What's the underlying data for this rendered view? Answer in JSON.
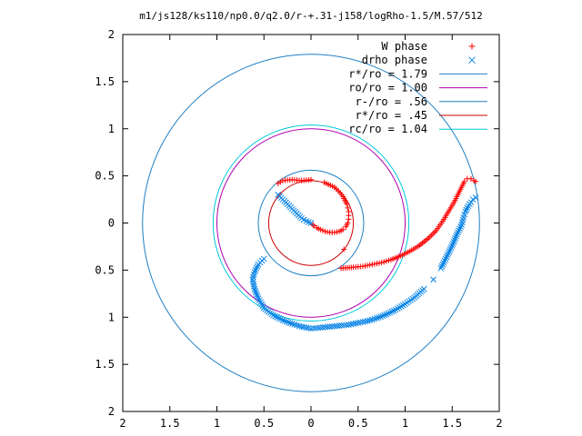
{
  "chart_data": {
    "type": "scatter",
    "title": "m1/js128/ks110/np0.0/q2.0/r-+.31-j158/logRho-1.5/M.57/512",
    "xlabel": "",
    "ylabel": "",
    "xlim": [
      -2,
      2
    ],
    "ylim": [
      -2,
      2
    ],
    "x_ticks": [
      -2,
      -1.5,
      -1,
      -0.5,
      0,
      0.5,
      1,
      1.5,
      2
    ],
    "y_ticks": [
      -2,
      -1.5,
      -1,
      -0.5,
      0,
      0.5,
      1,
      1.5,
      2
    ],
    "x_tick_labels": [
      "2",
      "1.5",
      "1",
      "0.5",
      "0",
      "0.5",
      "1",
      "1.5",
      "2"
    ],
    "y_tick_labels": [
      "2",
      "1.5",
      "1",
      "0.5",
      "0",
      "0.5",
      "1",
      "1.5",
      "2"
    ],
    "grid": false,
    "legend_position": "top-right",
    "series": [
      {
        "name": "W phase",
        "kind": "points",
        "marker": "plus",
        "color": "#ff0000",
        "points": [
          [
            -0.35,
            0.42
          ],
          [
            -0.3,
            0.45
          ],
          [
            -0.2,
            0.46
          ],
          [
            -0.1,
            0.45
          ],
          [
            0,
            0.46
          ],
          [
            0.14,
            0.43
          ],
          [
            0.25,
            0.38
          ],
          [
            0.31,
            0.32
          ],
          [
            0.34,
            0.28
          ],
          [
            0.36,
            0.24
          ],
          [
            0.38,
            0.2
          ],
          [
            0.39,
            0.16
          ],
          [
            0.4,
            0.12
          ],
          [
            0.4,
            0.08
          ],
          [
            0.4,
            0.04
          ],
          [
            0.39,
            0.0
          ],
          [
            0.37,
            -0.04
          ],
          [
            0.34,
            -0.07
          ],
          [
            0.3,
            -0.09
          ],
          [
            0.25,
            -0.1
          ],
          [
            0.2,
            -0.1
          ],
          [
            0.15,
            -0.09
          ],
          [
            0.1,
            -0.07
          ],
          [
            0.06,
            -0.05
          ],
          [
            0.03,
            -0.03
          ],
          [
            0.02,
            -0.02
          ],
          [
            0.35,
            -0.28
          ],
          [
            0.32,
            -0.48
          ],
          [
            0.45,
            -0.47
          ],
          [
            0.55,
            -0.46
          ],
          [
            0.65,
            -0.44
          ],
          [
            0.75,
            -0.42
          ],
          [
            0.85,
            -0.39
          ],
          [
            0.95,
            -0.35
          ],
          [
            1.05,
            -0.3
          ],
          [
            1.15,
            -0.24
          ],
          [
            1.25,
            -0.16
          ],
          [
            1.33,
            -0.08
          ],
          [
            1.4,
            0.02
          ],
          [
            1.46,
            0.12
          ],
          [
            1.52,
            0.22
          ],
          [
            1.56,
            0.3
          ],
          [
            1.6,
            0.38
          ],
          [
            1.63,
            0.44
          ],
          [
            1.66,
            0.47
          ],
          [
            1.7,
            0.47
          ],
          [
            1.73,
            0.45
          ],
          [
            1.75,
            0.44
          ]
        ]
      },
      {
        "name": "drho phase",
        "kind": "points",
        "marker": "cross",
        "color": "#0a84e6",
        "points": [
          [
            -0.35,
            0.3
          ],
          [
            -0.3,
            0.25
          ],
          [
            -0.25,
            0.2
          ],
          [
            -0.2,
            0.15
          ],
          [
            -0.15,
            0.1
          ],
          [
            -0.1,
            0.05
          ],
          [
            -0.05,
            0.02
          ],
          [
            0,
            0
          ],
          [
            -0.5,
            -0.38
          ],
          [
            -0.56,
            -0.44
          ],
          [
            -0.6,
            -0.52
          ],
          [
            -0.62,
            -0.6
          ],
          [
            -0.6,
            -0.7
          ],
          [
            -0.56,
            -0.8
          ],
          [
            -0.5,
            -0.9
          ],
          [
            -0.4,
            -0.98
          ],
          [
            -0.3,
            -1.03
          ],
          [
            -0.2,
            -1.07
          ],
          [
            -0.1,
            -1.1
          ],
          [
            0,
            -1.12
          ],
          [
            0.1,
            -1.11
          ],
          [
            0.2,
            -1.1
          ],
          [
            0.3,
            -1.09
          ],
          [
            0.4,
            -1.08
          ],
          [
            0.5,
            -1.06
          ],
          [
            0.6,
            -1.04
          ],
          [
            0.7,
            -1.01
          ],
          [
            0.8,
            -0.97
          ],
          [
            0.9,
            -0.92
          ],
          [
            1.0,
            -0.86
          ],
          [
            1.1,
            -0.79
          ],
          [
            1.2,
            -0.7
          ],
          [
            1.3,
            -0.6
          ],
          [
            1.38,
            -0.48
          ],
          [
            1.44,
            -0.36
          ],
          [
            1.5,
            -0.24
          ],
          [
            1.55,
            -0.12
          ],
          [
            1.6,
            -0.02
          ],
          [
            1.62,
            0.06
          ],
          [
            1.64,
            0.12
          ],
          [
            1.67,
            0.18
          ],
          [
            1.7,
            0.22
          ],
          [
            1.72,
            0.25
          ],
          [
            1.75,
            0.27
          ]
        ]
      },
      {
        "name": "r*/ro = 1.79",
        "kind": "circle",
        "radius": 1.79,
        "color": "#1f7fc4"
      },
      {
        "name": "ro/ro = 1.00",
        "kind": "circle",
        "radius": 1.0,
        "color": "#b000b0"
      },
      {
        "name": "r-/ro = .56",
        "kind": "circle",
        "radius": 0.56,
        "color": "#1f7fc4"
      },
      {
        "name": "r*/ro = .45",
        "kind": "circle",
        "radius": 0.45,
        "color": "#cc0000"
      },
      {
        "name": "rc/ro = 1.04",
        "kind": "circle",
        "radius": 1.04,
        "color": "#00c8d8"
      }
    ]
  }
}
